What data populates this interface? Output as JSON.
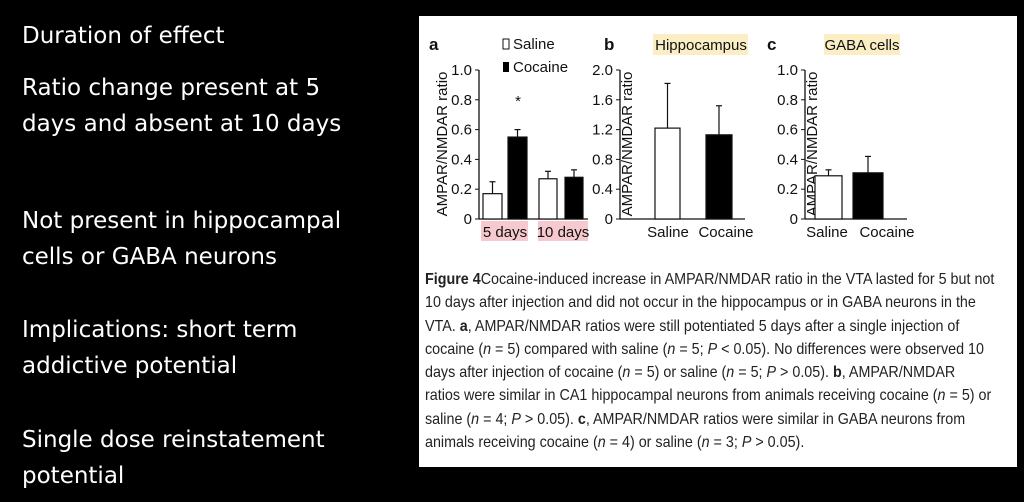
{
  "slide": {
    "bullets": [
      [
        "Duration of effect"
      ],
      [
        "Ratio change present at 5",
        "days and absent at 10 days"
      ],
      [
        "Not present in hippocampal",
        "cells or GABA neurons"
      ],
      [
        "Implications: short term",
        "addictive potential"
      ],
      [
        "Single dose reinstatement",
        "potential"
      ]
    ]
  },
  "colors": {
    "saline": "#ffffff",
    "cocaine": "#000000",
    "pink_highlight": "#f6c9cf",
    "yellow_highlight": "#fbeec4"
  },
  "chart_data": [
    {
      "type": "bar",
      "panel": "a",
      "title": "",
      "ylabel": "AMPAR/NMDAR ratio",
      "ylim": [
        0,
        1.0
      ],
      "yticks": [
        "0",
        "0.2",
        "0.4",
        "0.6",
        "0.8",
        "1.0"
      ],
      "legend": [
        "Saline",
        "Cocaine"
      ],
      "categories": [
        "5 days",
        "10 days"
      ],
      "series": [
        {
          "name": "Saline",
          "values": [
            0.17,
            0.27
          ],
          "errors": [
            0.08,
            0.05
          ]
        },
        {
          "name": "Cocaine",
          "values": [
            0.55,
            0.28
          ],
          "errors": [
            0.05,
            0.05
          ]
        }
      ],
      "annotation": "*"
    },
    {
      "type": "bar",
      "panel": "b",
      "title": "Hippocampus",
      "ylabel": "AMPAR/NMDAR ratio",
      "ylim": [
        0,
        2.0
      ],
      "yticks": [
        "0",
        "0.4",
        "0.8",
        "1.2",
        "1.6",
        "2.0"
      ],
      "categories": [
        "Saline",
        "Cocaine"
      ],
      "values": [
        1.22,
        1.13
      ],
      "errors": [
        0.6,
        0.39
      ]
    },
    {
      "type": "bar",
      "panel": "c",
      "title": "GABA cells",
      "ylabel": "AMPAR/NMDAR ratio",
      "ylim": [
        0,
        1.0
      ],
      "yticks": [
        "0",
        "0.2",
        "0.4",
        "0.6",
        "0.8",
        "1.0"
      ],
      "categories": [
        "Saline",
        "Cocaine"
      ],
      "values": [
        0.29,
        0.31
      ],
      "errors": [
        0.04,
        0.11
      ]
    }
  ],
  "caption": [
    [
      [
        "b",
        "Figure 4"
      ],
      [
        "",
        "Cocaine-induced increase in AMPAR/NMDAR ratio in the VTA lasted for 5 but not"
      ]
    ],
    [
      [
        "",
        "10 days after injection and did not occur in the hippocampus or in GABA neurons in the"
      ]
    ],
    [
      [
        "",
        "VTA. "
      ],
      [
        "b",
        "a"
      ],
      [
        "",
        ", AMPAR/NMDAR ratios were still potentiated 5 days after a single injection of"
      ]
    ],
    [
      [
        "",
        "cocaine ("
      ],
      [
        "i",
        "n"
      ],
      [
        "",
        " = 5) compared with saline ("
      ],
      [
        "i",
        "n"
      ],
      [
        "",
        " = 5; "
      ],
      [
        "i",
        "P"
      ],
      [
        "",
        " < 0.05). No differences were observed 10"
      ]
    ],
    [
      [
        "",
        "days after injection of cocaine ("
      ],
      [
        "i",
        "n"
      ],
      [
        "",
        " = 5) or saline ("
      ],
      [
        "i",
        "n"
      ],
      [
        "",
        " = 5; "
      ],
      [
        "i",
        "P"
      ],
      [
        "",
        " > 0.05). "
      ],
      [
        "b",
        "b"
      ],
      [
        "",
        ", AMPAR/NMDAR"
      ]
    ],
    [
      [
        "",
        "ratios were similar in CA1 hippocampal neurons from animals receiving cocaine ("
      ],
      [
        "i",
        "n"
      ],
      [
        "",
        " = 5) or"
      ]
    ],
    [
      [
        "",
        "saline ("
      ],
      [
        "i",
        "n"
      ],
      [
        "",
        " = 4; "
      ],
      [
        "i",
        "P"
      ],
      [
        "",
        " > 0.05). "
      ],
      [
        "b",
        "c"
      ],
      [
        "",
        ", AMPAR/NMDAR ratios were similar in GABA neurons from"
      ]
    ],
    [
      [
        "",
        "animals receiving cocaine ("
      ],
      [
        "i",
        "n"
      ],
      [
        "",
        " = 4) or saline ("
      ],
      [
        "i",
        "n"
      ],
      [
        "",
        " = 3; "
      ],
      [
        "i",
        "P"
      ],
      [
        "",
        " > 0.05)."
      ]
    ]
  ]
}
